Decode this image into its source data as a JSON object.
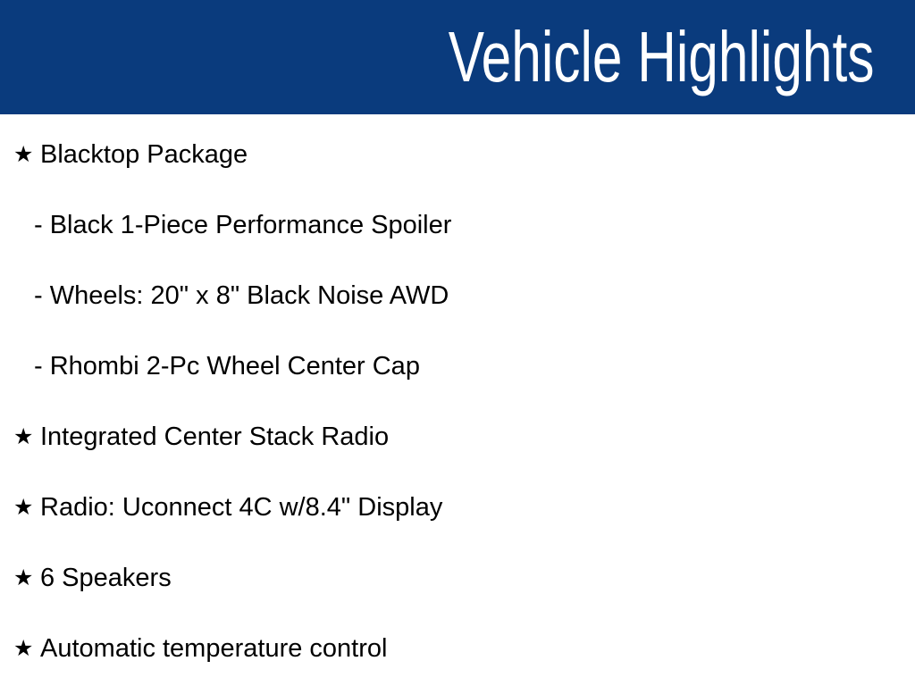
{
  "header": {
    "title": "Vehicle Highlights"
  },
  "list": {
    "bullet_icon": "★",
    "items": [
      {
        "level": 1,
        "text": "Blacktop Package"
      },
      {
        "level": 2,
        "text": "- Black 1-Piece Performance Spoiler"
      },
      {
        "level": 2,
        "text": "- Wheels: 20\" x 8\" Black Noise AWD"
      },
      {
        "level": 2,
        "text": "- Rhombi 2-Pc Wheel Center Cap"
      },
      {
        "level": 1,
        "text": "Integrated Center Stack Radio"
      },
      {
        "level": 1,
        "text": "Radio: Uconnect 4C w/8.4\" Display"
      },
      {
        "level": 1,
        "text": "6 Speakers"
      },
      {
        "level": 1,
        "text": "Automatic temperature control"
      }
    ]
  },
  "colors": {
    "header-bg": "#0a3b7d",
    "header-text": "#ffffff",
    "body-bg": "#ffffff",
    "body-text": "#000000"
  }
}
